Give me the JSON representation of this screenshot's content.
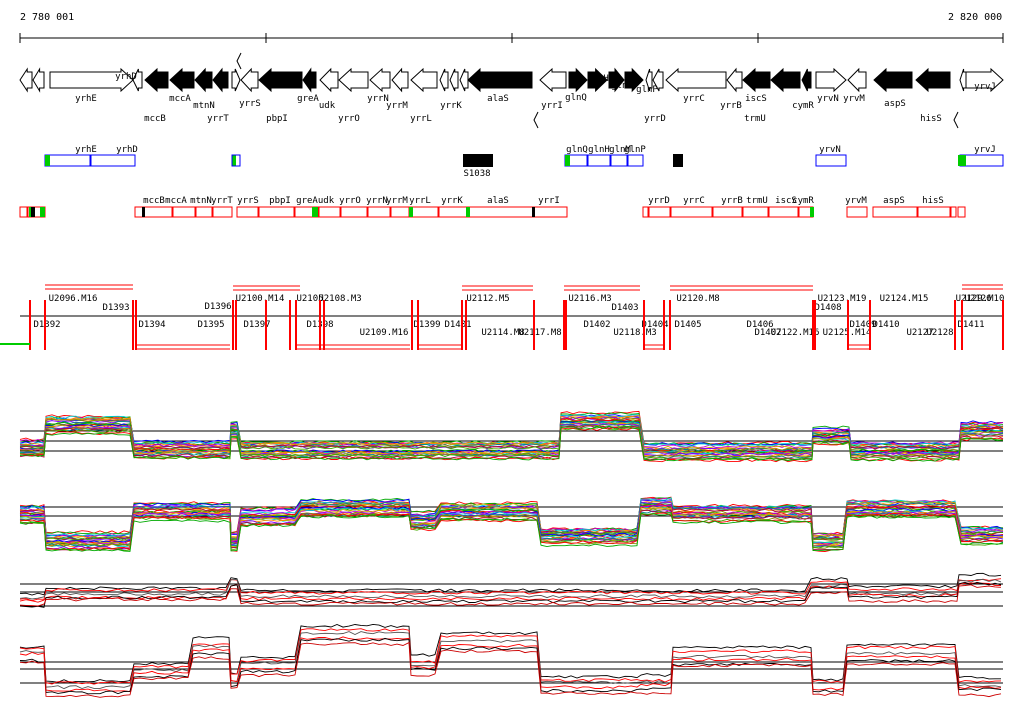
{
  "header": {
    "start_coord": "2 780 001",
    "end_coord": "2 820 000"
  },
  "colors": {
    "gene": "#000000",
    "box": "#0000ff",
    "operon": "#ff0000",
    "tss": "#00cc00",
    "probe": "#ff0000"
  },
  "genes_top": [
    "yrhE",
    "yrhD",
    "mccA",
    "yrrS",
    "greA",
    "yrrN",
    "alaS",
    "glnH",
    "glnM",
    "glnP",
    "yrrC",
    "iscS",
    "yrvN",
    "yrvM",
    "aspS",
    "yrvJ"
  ],
  "genes_bottom": [
    "mccB",
    "mtnN",
    "yrrT",
    "pbpI",
    "udk",
    "yrrO",
    "yrrM",
    "yrrL",
    "yrrK",
    "yrrI",
    "glnQ",
    "yrrD",
    "yrrB",
    "trmU",
    "cymR",
    "hisS"
  ],
  "box_row": {
    "labels": [
      "yrhE",
      "yrhD",
      "glnQ",
      "glnH",
      "glnM",
      "glnP",
      "yrvN",
      "yrvJ"
    ],
    "feature": "S1038"
  },
  "operon_row": {
    "labels": [
      "mccB",
      "mccA",
      "mtnN",
      "yrrT",
      "yrrS",
      "pbpI",
      "greA",
      "udk",
      "yrrO",
      "yrrN",
      "yrrM",
      "yrrL",
      "yrrK",
      "alaS",
      "yrrI",
      "yrrD",
      "yrrC",
      "yrrB",
      "trmU",
      "iscS",
      "cymR",
      "yrvM",
      "aspS",
      "hisS"
    ]
  },
  "tu_upper": [
    "U2096.M16",
    "D1393",
    "D1396",
    "U2100.M14",
    "U2105",
    "U2108.M3",
    "U2112.M5",
    "U2116.M3",
    "D1403",
    "U2120.M8",
    "U2123.M19",
    "D1408",
    "U2124.M15",
    "U2126",
    "U2129.M10"
  ],
  "tu_lower": [
    "D1392",
    "D1394",
    "D1395",
    "D1397",
    "D1398",
    "U2109.M16",
    "D1399",
    "D1401",
    "U2114.M8",
    "U2117.M8",
    "D1402",
    "U2118.M3",
    "D1404",
    "D1405",
    "D1406",
    "D1407",
    "U2122.M16",
    "U2125.M14",
    "D1409",
    "D1410",
    "U2127",
    "U2128",
    "D1411"
  ]
}
